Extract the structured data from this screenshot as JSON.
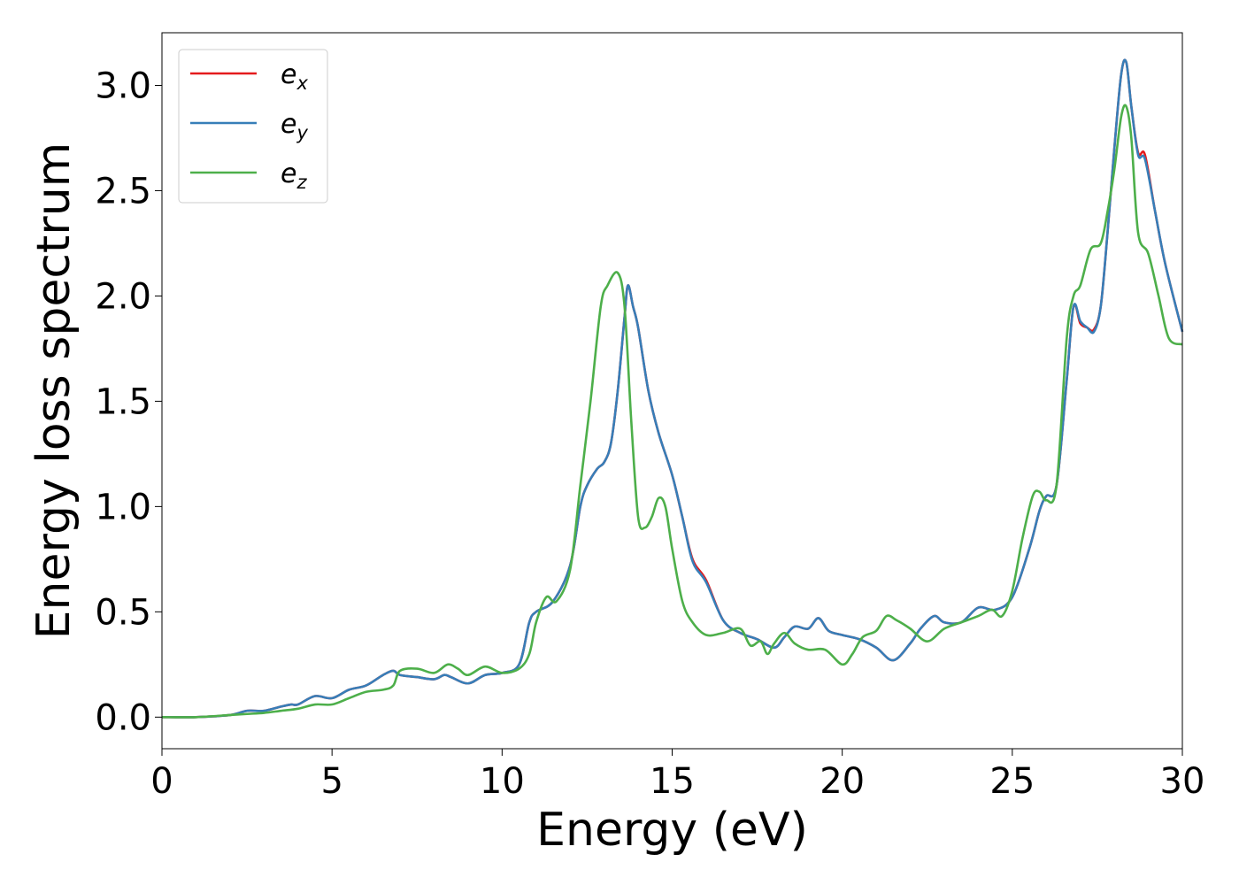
{
  "chart_data": {
    "type": "line",
    "xlabel": "Energy (eV)",
    "ylabel": "Energy loss spectrum",
    "xlim": [
      0,
      30
    ],
    "ylim": [
      -0.15,
      3.25
    ],
    "xticks": [
      0,
      5,
      10,
      15,
      20,
      25,
      30
    ],
    "xtick_labels": [
      "0",
      "5",
      "10",
      "15",
      "20",
      "25",
      "30"
    ],
    "yticks": [
      0.0,
      0.5,
      1.0,
      1.5,
      2.0,
      2.5,
      3.0
    ],
    "ytick_labels": [
      "0.0",
      "0.5",
      "1.0",
      "1.5",
      "2.0",
      "2.5",
      "3.0"
    ],
    "grid": false,
    "legend_position": "top-left",
    "series": [
      {
        "name": "e",
        "subscript": "x",
        "color": "#e41a1c",
        "x": [
          0,
          1,
          2,
          2.5,
          3,
          3.5,
          3.8,
          4,
          4.5,
          5,
          5.5,
          6,
          6.5,
          6.8,
          7,
          7.5,
          8,
          8.3,
          8.5,
          9,
          9.5,
          10,
          10.5,
          10.8,
          11,
          11.5,
          12,
          12.3,
          12.5,
          12.8,
          13,
          13.2,
          13.4,
          13.6,
          13.7,
          13.85,
          14,
          14.3,
          14.6,
          15,
          15.3,
          15.6,
          16,
          16.5,
          17,
          17.5,
          18,
          18.3,
          18.6,
          19,
          19.3,
          19.6,
          20,
          20.5,
          21,
          21.5,
          22,
          22.3,
          22.7,
          23,
          23.5,
          24,
          24.5,
          25,
          25.5,
          25.8,
          26,
          26.3,
          26.6,
          26.8,
          27,
          27.2,
          27.4,
          27.6,
          27.8,
          28,
          28.2,
          28.35,
          28.5,
          28.7,
          28.9,
          29.2,
          29.5,
          30
        ],
        "values": [
          0,
          0.0,
          0.01,
          0.03,
          0.03,
          0.05,
          0.06,
          0.06,
          0.1,
          0.09,
          0.13,
          0.15,
          0.2,
          0.22,
          0.2,
          0.19,
          0.18,
          0.2,
          0.19,
          0.16,
          0.2,
          0.21,
          0.25,
          0.45,
          0.5,
          0.55,
          0.72,
          1.0,
          1.1,
          1.18,
          1.21,
          1.3,
          1.55,
          1.9,
          2.05,
          1.95,
          1.85,
          1.55,
          1.35,
          1.15,
          0.95,
          0.75,
          0.65,
          0.46,
          0.4,
          0.37,
          0.33,
          0.38,
          0.43,
          0.42,
          0.47,
          0.41,
          0.39,
          0.37,
          0.33,
          0.27,
          0.35,
          0.42,
          0.48,
          0.45,
          0.45,
          0.52,
          0.51,
          0.57,
          0.8,
          0.98,
          1.05,
          1.1,
          1.6,
          1.95,
          1.87,
          1.85,
          1.84,
          1.95,
          2.3,
          2.7,
          3.05,
          3.11,
          2.9,
          2.68,
          2.67,
          2.4,
          2.15,
          1.83
        ]
      },
      {
        "name": "e",
        "subscript": "y",
        "color": "#377eb8",
        "x": [
          0,
          1,
          2,
          2.5,
          3,
          3.5,
          3.8,
          4,
          4.5,
          5,
          5.5,
          6,
          6.5,
          6.8,
          7,
          7.5,
          8,
          8.3,
          8.5,
          9,
          9.5,
          10,
          10.5,
          10.8,
          11,
          11.5,
          12,
          12.3,
          12.5,
          12.8,
          13,
          13.2,
          13.4,
          13.6,
          13.7,
          13.85,
          14,
          14.3,
          14.6,
          15,
          15.3,
          15.6,
          16,
          16.5,
          17,
          17.5,
          18,
          18.3,
          18.6,
          19,
          19.3,
          19.6,
          20,
          20.5,
          21,
          21.5,
          22,
          22.3,
          22.7,
          23,
          23.5,
          24,
          24.5,
          25,
          25.5,
          25.8,
          26,
          26.3,
          26.6,
          26.8,
          27,
          27.2,
          27.4,
          27.6,
          27.8,
          28,
          28.2,
          28.35,
          28.5,
          28.7,
          28.9,
          29.2,
          29.5,
          30
        ],
        "values": [
          0,
          0.0,
          0.01,
          0.03,
          0.03,
          0.05,
          0.06,
          0.06,
          0.1,
          0.09,
          0.13,
          0.15,
          0.2,
          0.22,
          0.2,
          0.19,
          0.18,
          0.2,
          0.19,
          0.16,
          0.2,
          0.21,
          0.25,
          0.45,
          0.5,
          0.55,
          0.72,
          1.0,
          1.1,
          1.18,
          1.21,
          1.3,
          1.55,
          1.9,
          2.05,
          1.95,
          1.85,
          1.55,
          1.35,
          1.15,
          0.95,
          0.74,
          0.64,
          0.46,
          0.4,
          0.37,
          0.33,
          0.38,
          0.43,
          0.42,
          0.47,
          0.41,
          0.39,
          0.37,
          0.33,
          0.27,
          0.35,
          0.42,
          0.48,
          0.45,
          0.45,
          0.52,
          0.51,
          0.57,
          0.8,
          0.98,
          1.05,
          1.1,
          1.6,
          1.95,
          1.88,
          1.85,
          1.83,
          1.95,
          2.3,
          2.7,
          3.05,
          3.11,
          2.9,
          2.67,
          2.65,
          2.4,
          2.15,
          1.83
        ]
      },
      {
        "name": "e",
        "subscript": "z",
        "color": "#4daf4a",
        "x": [
          0,
          1,
          2,
          2.5,
          3,
          3.5,
          4,
          4.5,
          5,
          5.5,
          6,
          6.5,
          6.8,
          7,
          7.5,
          8,
          8.4,
          8.7,
          9,
          9.5,
          10,
          10.5,
          10.8,
          11,
          11.3,
          11.6,
          12,
          12.3,
          12.6,
          12.9,
          13.1,
          13.4,
          13.6,
          13.8,
          14,
          14.2,
          14.4,
          14.6,
          14.8,
          15,
          15.3,
          15.6,
          16,
          16.5,
          17,
          17.3,
          17.6,
          17.8,
          18,
          18.3,
          18.6,
          19,
          19.5,
          20,
          20.3,
          20.6,
          21,
          21.3,
          21.6,
          22,
          22.5,
          23,
          23.5,
          24,
          24.4,
          24.7,
          25,
          25.3,
          25.6,
          25.8,
          26,
          26.3,
          26.6,
          26.8,
          27,
          27.3,
          27.6,
          27.8,
          28,
          28.2,
          28.35,
          28.5,
          28.7,
          29,
          29.3,
          29.6,
          30
        ],
        "values": [
          0,
          0.0,
          0.01,
          0.015,
          0.02,
          0.03,
          0.04,
          0.06,
          0.06,
          0.09,
          0.12,
          0.13,
          0.15,
          0.22,
          0.23,
          0.21,
          0.25,
          0.23,
          0.2,
          0.24,
          0.21,
          0.23,
          0.3,
          0.45,
          0.57,
          0.55,
          0.7,
          1.1,
          1.5,
          1.95,
          2.05,
          2.11,
          1.95,
          1.4,
          0.95,
          0.9,
          0.95,
          1.04,
          1.0,
          0.8,
          0.55,
          0.45,
          0.39,
          0.4,
          0.42,
          0.34,
          0.36,
          0.3,
          0.35,
          0.4,
          0.35,
          0.32,
          0.32,
          0.25,
          0.3,
          0.38,
          0.41,
          0.48,
          0.46,
          0.42,
          0.36,
          0.42,
          0.45,
          0.48,
          0.51,
          0.48,
          0.6,
          0.85,
          1.05,
          1.07,
          1.03,
          1.1,
          1.8,
          2.0,
          2.05,
          2.22,
          2.25,
          2.4,
          2.6,
          2.85,
          2.9,
          2.75,
          2.3,
          2.2,
          2.0,
          1.8,
          1.77
        ]
      }
    ]
  }
}
